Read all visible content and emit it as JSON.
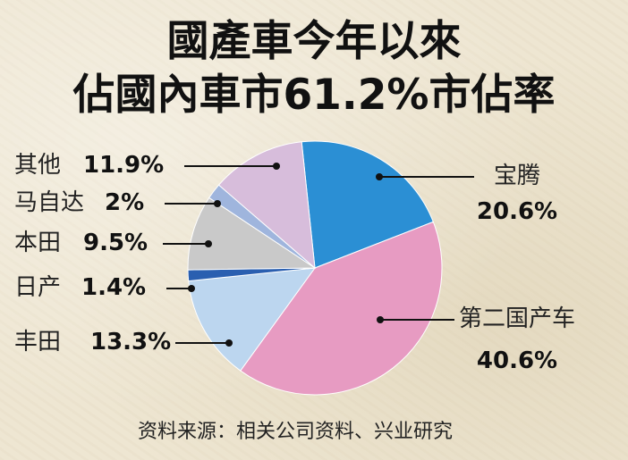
{
  "title": [
    "國產車今年以來",
    "佔國內車市61.2%市佔率"
  ],
  "source": "资料来源：相关公司资料、兴业研究",
  "chart_data": {
    "type": "pie",
    "unit": "%",
    "slices": [
      {
        "name": "宝腾",
        "value": 20.6,
        "label": "20.6%",
        "color": "#2b8fd4"
      },
      {
        "name": "第二国产车",
        "value": 40.6,
        "label": "40.6%",
        "color": "#e79bc2"
      },
      {
        "name": "丰田",
        "value": 13.3,
        "label": "13.3%",
        "color": "#bcd6ef"
      },
      {
        "name": "日产",
        "value": 1.4,
        "label": "1.4%",
        "color": "#2a5fb0"
      },
      {
        "name": "本田",
        "value": 9.5,
        "label": "9.5%",
        "color": "#c9c9c9"
      },
      {
        "name": "马自达",
        "value": 2,
        "label": "2%",
        "color": "#9fb5dd"
      },
      {
        "name": "其他",
        "value": 11.9,
        "label": "11.9%",
        "color": "#d7bddb"
      }
    ]
  }
}
